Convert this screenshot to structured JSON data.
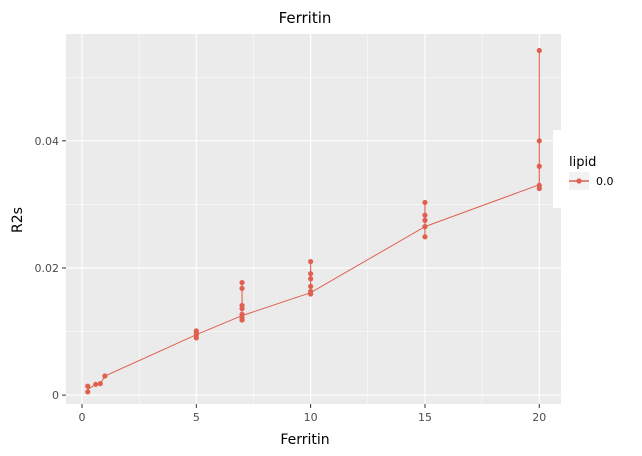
{
  "chart_data": {
    "type": "line",
    "title": "Ferritin",
    "xlabel": "Ferritin",
    "ylabel": "R2s",
    "xlim": [
      -0.7,
      20.95
    ],
    "ylim": [
      -0.0014,
      0.0568
    ],
    "xticks": [
      0,
      5,
      10,
      15,
      20
    ],
    "xtick_labels": [
      "0",
      "5",
      "10",
      "15",
      "20"
    ],
    "yticks": [
      0,
      0.02,
      0.04
    ],
    "ytick_labels": [
      "0",
      "0.02",
      "0.04"
    ],
    "grid": true,
    "legend": {
      "title": "lipid",
      "position": "right",
      "entries": [
        "0.0"
      ]
    },
    "colors": {
      "series": "#e06050",
      "panel": "#ebebeb",
      "grid": "#ffffff"
    },
    "series": [
      {
        "name": "0.0",
        "points": [
          [
            0.25,
            0.0005
          ],
          [
            0.25,
            0.0014
          ],
          [
            0.6,
            0.0017
          ],
          [
            0.8,
            0.0018
          ],
          [
            1.0,
            0.003
          ],
          [
            5,
            0.009
          ],
          [
            5,
            0.0094
          ],
          [
            5,
            0.0098
          ],
          [
            5,
            0.0101
          ],
          [
            7,
            0.0118
          ],
          [
            7,
            0.0122
          ],
          [
            7,
            0.0127
          ],
          [
            7,
            0.0136
          ],
          [
            7,
            0.0141
          ],
          [
            7,
            0.0168
          ],
          [
            7,
            0.0177
          ],
          [
            10,
            0.0159
          ],
          [
            10,
            0.0163
          ],
          [
            10,
            0.0171
          ],
          [
            10,
            0.0183
          ],
          [
            10,
            0.0191
          ],
          [
            10,
            0.021
          ],
          [
            15,
            0.0249
          ],
          [
            15,
            0.0265
          ],
          [
            15,
            0.0275
          ],
          [
            15,
            0.0283
          ],
          [
            15,
            0.0303
          ],
          [
            20,
            0.0325
          ],
          [
            20,
            0.033
          ],
          [
            20,
            0.036
          ],
          [
            20,
            0.04
          ],
          [
            20,
            0.0542
          ]
        ],
        "mean_line": [
          [
            0.25,
            0.0009
          ],
          [
            0.6,
            0.0017
          ],
          [
            0.8,
            0.0018
          ],
          [
            1.0,
            0.003
          ],
          [
            5,
            0.0095
          ],
          [
            7,
            0.0125
          ],
          [
            10,
            0.0161
          ],
          [
            15,
            0.0265
          ],
          [
            20,
            0.0331
          ]
        ]
      }
    ]
  }
}
